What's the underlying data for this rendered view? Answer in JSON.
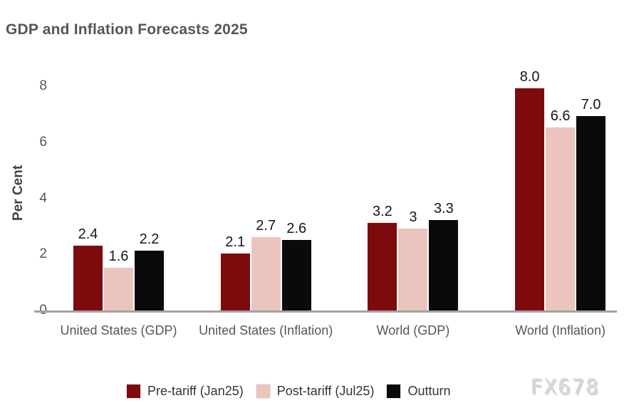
{
  "watermark": "FX678",
  "colors": {
    "pre_tariff": "#7D0B0E",
    "post_tariff": "#EBC4BE",
    "outturn": "#0A0A0A",
    "axis_line": "#A3A3A3",
    "text_gray": "#55565A"
  },
  "chart_data": {
    "type": "bar",
    "title": "GDP and Inflation Forecasts 2025",
    "ylabel": "Per Cent",
    "xlabel": "",
    "ylim": [
      0,
      8
    ],
    "yticks": [
      0,
      2,
      4,
      6,
      8
    ],
    "grid": false,
    "legend_position": "bottom",
    "categories": [
      "United States (GDP)",
      "United States (Inflation)",
      "World (GDP)",
      "World (Inflation)"
    ],
    "series": [
      {
        "name": "Pre-tariff (Jan25)",
        "color": "#7D0B0E",
        "values": [
          2.4,
          2.1,
          3.2,
          8.0
        ],
        "labels": [
          "2.4",
          "2.1",
          "3.2",
          "8.0"
        ]
      },
      {
        "name": "Post-tariff (Jul25)",
        "color": "#EBC4BE",
        "values": [
          1.6,
          2.7,
          3.0,
          6.6
        ],
        "labels": [
          "1.6",
          "2.7",
          "3",
          "6.6"
        ]
      },
      {
        "name": "Outturn",
        "color": "#0A0A0A",
        "values": [
          2.2,
          2.6,
          3.3,
          7.0
        ],
        "labels": [
          "2.2",
          "2.6",
          "3.3",
          "7.0"
        ]
      }
    ]
  }
}
